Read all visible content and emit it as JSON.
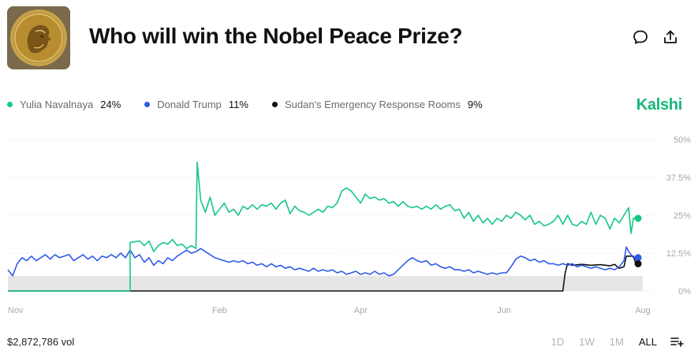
{
  "header": {
    "title": "Who will win the Nobel Peace Prize?",
    "brand": "Kalshi",
    "image": "nobel-medal-image"
  },
  "legend": [
    {
      "name": "Yulia Navalnaya",
      "value": "24%",
      "color": "#16c784"
    },
    {
      "name": "Donald Trump",
      "value": "11%",
      "color": "#2f5bea"
    },
    {
      "name": "Sudan's Emergency Response Rooms",
      "value": "9%",
      "color": "#111111"
    }
  ],
  "footer": {
    "volume": "$2,872,786 vol",
    "ranges": [
      "1D",
      "1W",
      "1M",
      "ALL"
    ],
    "active_range": "ALL"
  },
  "chart_data": {
    "type": "line",
    "title": "Who will win the Nobel Peace Prize?",
    "xlabel": "",
    "ylabel": "",
    "x_ticks": [
      "Nov",
      "Feb",
      "Apr",
      "Jun",
      "Aug"
    ],
    "x_tick_positions": [
      0,
      90,
      150,
      211,
      270
    ],
    "y_ticks": [
      "0%",
      "12.5%",
      "25%",
      "37.5%",
      "50%"
    ],
    "ylim": [
      0,
      50
    ],
    "xlim": [
      0,
      270
    ],
    "series": [
      {
        "name": "Yulia Navalnaya",
        "color": "#16c784",
        "points": [
          [
            0,
            0
          ],
          [
            52,
            0
          ],
          [
            52,
            16
          ],
          [
            56,
            16.5
          ],
          [
            58,
            15
          ],
          [
            60,
            16.5
          ],
          [
            62,
            13
          ],
          [
            64,
            15
          ],
          [
            66,
            16
          ],
          [
            68,
            15.5
          ],
          [
            70,
            17
          ],
          [
            72,
            15
          ],
          [
            74,
            15.5
          ],
          [
            76,
            14
          ],
          [
            78,
            15
          ],
          [
            80,
            14
          ],
          [
            80.5,
            42.5
          ],
          [
            82,
            30
          ],
          [
            84,
            26
          ],
          [
            86,
            31
          ],
          [
            88,
            25
          ],
          [
            90,
            27
          ],
          [
            92,
            29
          ],
          [
            94,
            26
          ],
          [
            96,
            27
          ],
          [
            98,
            25
          ],
          [
            100,
            28
          ],
          [
            102,
            27
          ],
          [
            104,
            28.5
          ],
          [
            106,
            27
          ],
          [
            108,
            28.5
          ],
          [
            110,
            28
          ],
          [
            112,
            29
          ],
          [
            114,
            27
          ],
          [
            116,
            29
          ],
          [
            118,
            30
          ],
          [
            120,
            25.5
          ],
          [
            122,
            28
          ],
          [
            124,
            26.5
          ],
          [
            126,
            26
          ],
          [
            128,
            25
          ],
          [
            130,
            26
          ],
          [
            132,
            27
          ],
          [
            134,
            26
          ],
          [
            136,
            28
          ],
          [
            138,
            27.5
          ],
          [
            140,
            29
          ],
          [
            142,
            33
          ],
          [
            144,
            34
          ],
          [
            146,
            33
          ],
          [
            148,
            31
          ],
          [
            150,
            29
          ],
          [
            152,
            32
          ],
          [
            154,
            30.5
          ],
          [
            156,
            31
          ],
          [
            158,
            30
          ],
          [
            160,
            30.5
          ],
          [
            162,
            29
          ],
          [
            164,
            29.5
          ],
          [
            166,
            28
          ],
          [
            168,
            29.5
          ],
          [
            170,
            28
          ],
          [
            172,
            27.5
          ],
          [
            174,
            28
          ],
          [
            176,
            27
          ],
          [
            178,
            28
          ],
          [
            180,
            27
          ],
          [
            182,
            28.5
          ],
          [
            184,
            27
          ],
          [
            186,
            28
          ],
          [
            188,
            28.5
          ],
          [
            190,
            26.5
          ],
          [
            192,
            27
          ],
          [
            194,
            24
          ],
          [
            196,
            26
          ],
          [
            198,
            23
          ],
          [
            200,
            25
          ],
          [
            202,
            22.5
          ],
          [
            204,
            24
          ],
          [
            206,
            22
          ],
          [
            208,
            24
          ],
          [
            210,
            23
          ],
          [
            212,
            25
          ],
          [
            214,
            24
          ],
          [
            216,
            26
          ],
          [
            218,
            25
          ],
          [
            220,
            23.5
          ],
          [
            222,
            25
          ],
          [
            224,
            22
          ],
          [
            226,
            23
          ],
          [
            228,
            21.5
          ],
          [
            230,
            22
          ],
          [
            232,
            23
          ],
          [
            234,
            25
          ],
          [
            236,
            22
          ],
          [
            238,
            25
          ],
          [
            240,
            22
          ],
          [
            242,
            21.5
          ],
          [
            244,
            23
          ],
          [
            246,
            22
          ],
          [
            248,
            26
          ],
          [
            250,
            22
          ],
          [
            252,
            25
          ],
          [
            254,
            24
          ],
          [
            256,
            20.5
          ],
          [
            258,
            24
          ],
          [
            260,
            22.5
          ],
          [
            262,
            25
          ],
          [
            264,
            27.5
          ],
          [
            265,
            19
          ],
          [
            266,
            24
          ],
          [
            268,
            24
          ]
        ]
      },
      {
        "name": "Donald Trump",
        "color": "#2f5bea",
        "points": [
          [
            0,
            7
          ],
          [
            2,
            5
          ],
          [
            4,
            9
          ],
          [
            6,
            11
          ],
          [
            8,
            10
          ],
          [
            10,
            11.5
          ],
          [
            12,
            10
          ],
          [
            14,
            11
          ],
          [
            16,
            12
          ],
          [
            18,
            10.5
          ],
          [
            20,
            12
          ],
          [
            22,
            11
          ],
          [
            24,
            11.5
          ],
          [
            26,
            12
          ],
          [
            28,
            10
          ],
          [
            30,
            11
          ],
          [
            32,
            12
          ],
          [
            34,
            10.5
          ],
          [
            36,
            11.5
          ],
          [
            38,
            10
          ],
          [
            40,
            11.5
          ],
          [
            42,
            11
          ],
          [
            44,
            12
          ],
          [
            46,
            11
          ],
          [
            48,
            12.5
          ],
          [
            50,
            11
          ],
          [
            52,
            13.5
          ],
          [
            54,
            11
          ],
          [
            56,
            12
          ],
          [
            58,
            9.5
          ],
          [
            60,
            11
          ],
          [
            62,
            8.5
          ],
          [
            64,
            10
          ],
          [
            66,
            9
          ],
          [
            68,
            11
          ],
          [
            70,
            10
          ],
          [
            72,
            11.5
          ],
          [
            74,
            12.5
          ],
          [
            76,
            13.5
          ],
          [
            78,
            12.5
          ],
          [
            80,
            13
          ],
          [
            82,
            14
          ],
          [
            84,
            13
          ],
          [
            86,
            12
          ],
          [
            88,
            11
          ],
          [
            90,
            10.5
          ],
          [
            92,
            10
          ],
          [
            94,
            9.5
          ],
          [
            96,
            10
          ],
          [
            98,
            9.5
          ],
          [
            100,
            10
          ],
          [
            102,
            9
          ],
          [
            104,
            9.5
          ],
          [
            106,
            8.5
          ],
          [
            108,
            9
          ],
          [
            110,
            8
          ],
          [
            112,
            9
          ],
          [
            114,
            8
          ],
          [
            116,
            8.5
          ],
          [
            118,
            7.5
          ],
          [
            120,
            8
          ],
          [
            122,
            7
          ],
          [
            124,
            7.5
          ],
          [
            126,
            7
          ],
          [
            128,
            6.5
          ],
          [
            130,
            7.5
          ],
          [
            132,
            6.5
          ],
          [
            134,
            7
          ],
          [
            136,
            6.5
          ],
          [
            138,
            7
          ],
          [
            140,
            6
          ],
          [
            142,
            6.5
          ],
          [
            144,
            5.5
          ],
          [
            146,
            6
          ],
          [
            148,
            6.5
          ],
          [
            150,
            5.5
          ],
          [
            152,
            6
          ],
          [
            154,
            5.5
          ],
          [
            156,
            6.5
          ],
          [
            158,
            5.5
          ],
          [
            160,
            6
          ],
          [
            162,
            5
          ],
          [
            164,
            5.5
          ],
          [
            166,
            7
          ],
          [
            168,
            8.5
          ],
          [
            170,
            10
          ],
          [
            172,
            11
          ],
          [
            174,
            10
          ],
          [
            176,
            9.5
          ],
          [
            178,
            10
          ],
          [
            180,
            8.5
          ],
          [
            182,
            9
          ],
          [
            184,
            8
          ],
          [
            186,
            7.5
          ],
          [
            188,
            8
          ],
          [
            190,
            7
          ],
          [
            192,
            7
          ],
          [
            194,
            6.5
          ],
          [
            196,
            7
          ],
          [
            198,
            6
          ],
          [
            200,
            6.5
          ],
          [
            202,
            6
          ],
          [
            204,
            5.5
          ],
          [
            206,
            6
          ],
          [
            208,
            5.5
          ],
          [
            210,
            6
          ],
          [
            212,
            6
          ],
          [
            214,
            8
          ],
          [
            216,
            10.5
          ],
          [
            218,
            11.5
          ],
          [
            220,
            11
          ],
          [
            222,
            10
          ],
          [
            224,
            10.5
          ],
          [
            226,
            9.5
          ],
          [
            228,
            10
          ],
          [
            230,
            9
          ],
          [
            232,
            9
          ],
          [
            234,
            8.5
          ],
          [
            236,
            9
          ],
          [
            238,
            8.5
          ],
          [
            240,
            9
          ],
          [
            242,
            8
          ],
          [
            244,
            8.5
          ],
          [
            246,
            8
          ],
          [
            248,
            7.5
          ],
          [
            250,
            8
          ],
          [
            252,
            7.5
          ],
          [
            254,
            7
          ],
          [
            256,
            7.5
          ],
          [
            258,
            7
          ],
          [
            260,
            8
          ],
          [
            262,
            10
          ],
          [
            263,
            14.5
          ],
          [
            264,
            13
          ],
          [
            265,
            12
          ],
          [
            266,
            11
          ],
          [
            268,
            11
          ]
        ]
      },
      {
        "name": "Sudan's Emergency Response Rooms",
        "color": "#111111",
        "points": [
          [
            0,
            0
          ],
          [
            236,
            0
          ],
          [
            237,
            6
          ],
          [
            238,
            9
          ],
          [
            240,
            8.5
          ],
          [
            244,
            8.8
          ],
          [
            248,
            8.5
          ],
          [
            252,
            8.7
          ],
          [
            256,
            8.3
          ],
          [
            258,
            8.8
          ],
          [
            260,
            7.5
          ],
          [
            262,
            8
          ],
          [
            263,
            11.5
          ],
          [
            266,
            11.5
          ],
          [
            267,
            9
          ],
          [
            268,
            9
          ]
        ]
      }
    ]
  }
}
